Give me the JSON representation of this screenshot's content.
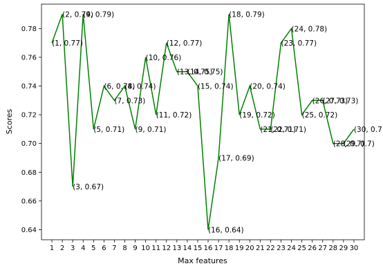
{
  "chart_data": {
    "type": "line",
    "xlabel": "Max features",
    "ylabel": "Scores",
    "x": [
      1,
      2,
      3,
      4,
      5,
      6,
      7,
      8,
      9,
      10,
      11,
      12,
      13,
      14,
      15,
      16,
      17,
      18,
      19,
      20,
      21,
      22,
      23,
      24,
      25,
      26,
      27,
      28,
      29,
      30
    ],
    "y": [
      0.77,
      0.79,
      0.67,
      0.79,
      0.71,
      0.74,
      0.73,
      0.74,
      0.71,
      0.76,
      0.72,
      0.77,
      0.75,
      0.75,
      0.74,
      0.64,
      0.69,
      0.79,
      0.72,
      0.74,
      0.71,
      0.71,
      0.77,
      0.78,
      0.72,
      0.73,
      0.73,
      0.7,
      0.7,
      0.71
    ],
    "y_display": [
      "0.77",
      "0.79",
      "0.67",
      "0.79",
      "0.71",
      "0.74",
      "0.73",
      "0.74",
      "0.71",
      "0.76",
      "0.72",
      "0.77",
      "0.75",
      "0.75",
      "0.74",
      "0.64",
      "0.69",
      "0.79",
      "0.72",
      "0.74",
      "0.71",
      "0.71",
      "0.77",
      "0.78",
      "0.72",
      "0.73",
      "0.73",
      "0.7",
      "0.7",
      "0.71"
    ],
    "xlim": [
      0,
      31
    ],
    "ylim": [
      0.633,
      0.797
    ],
    "yticks": [
      "0.64",
      "0.66",
      "0.68",
      "0.70",
      "0.72",
      "0.74",
      "0.76",
      "0.78"
    ],
    "ytick_values": [
      0.64,
      0.66,
      0.68,
      0.7,
      0.72,
      0.74,
      0.76,
      0.78
    ],
    "line_color": "#008000",
    "grid": false,
    "legend": "none"
  }
}
